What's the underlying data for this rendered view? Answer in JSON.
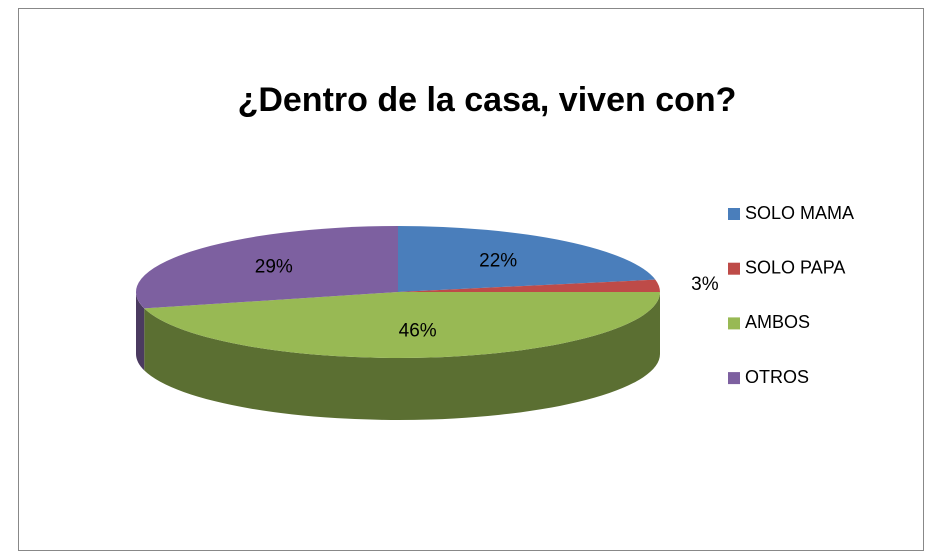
{
  "chart_data": {
    "type": "pie",
    "title": "¿Dentro de la casa, viven con?",
    "categories": [
      "SOLO MAMA",
      "SOLO PAPA",
      "AMBOS",
      "OTROS"
    ],
    "values": [
      22,
      3,
      46,
      29
    ],
    "value_labels": [
      "22%",
      "3%",
      "46%",
      "29%"
    ],
    "colors": [
      "#4a7ebb",
      "#be4b48",
      "#98b954",
      "#7d60a0"
    ],
    "legend": "right"
  }
}
